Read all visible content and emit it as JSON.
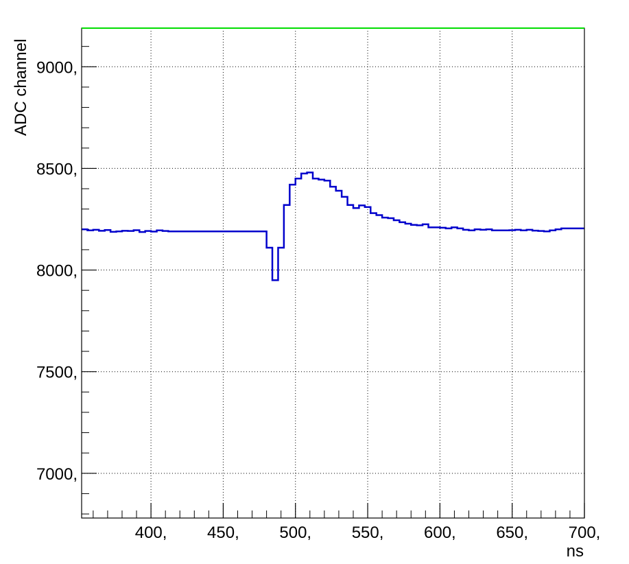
{
  "chart_data": {
    "type": "line",
    "style": "step",
    "title": "",
    "xlabel": "ns",
    "ylabel": "ADC channel",
    "xlim": [
      352,
      700
    ],
    "ylim": [
      6780,
      9190
    ],
    "x_ticks": [
      400,
      450,
      500,
      550,
      600,
      650,
      700
    ],
    "x_tick_labels": [
      "400,",
      "450,",
      "500,",
      "550,",
      "600,",
      "650,",
      "700,"
    ],
    "y_ticks": [
      7000,
      7500,
      8000,
      8500,
      9000
    ],
    "y_tick_labels": [
      "7000,",
      "7500,",
      "8000,",
      "8500,",
      "9000,"
    ],
    "grid": true,
    "legend": "none",
    "colors": {
      "series": "#0000cc",
      "top_frame": "#00dd00",
      "frame": "#000000"
    },
    "bin_start": 352,
    "bin_width": 4,
    "series": [
      {
        "values": [
          8200,
          8195,
          8198,
          8193,
          8197,
          8188,
          8190,
          8193,
          8192,
          8196,
          8187,
          8192,
          8189,
          8195,
          8192,
          8190,
          8190,
          8190,
          8190,
          8190,
          8190,
          8190,
          8190,
          8190,
          8190,
          8190,
          8190,
          8190,
          8190,
          8190,
          8190,
          8190,
          8110,
          7950,
          8110,
          8320,
          8420,
          8450,
          8475,
          8480,
          8450,
          8445,
          8440,
          8410,
          8390,
          8360,
          8320,
          8305,
          8318,
          8310,
          8280,
          8270,
          8258,
          8255,
          8245,
          8235,
          8228,
          8222,
          8220,
          8225,
          8210,
          8210,
          8208,
          8205,
          8210,
          8205,
          8198,
          8195,
          8200,
          8198,
          8200,
          8195,
          8195,
          8195,
          8196,
          8198,
          8195,
          8198,
          8194,
          8192,
          8190,
          8195,
          8200,
          8205,
          8205,
          8205,
          8205
        ]
      }
    ]
  }
}
